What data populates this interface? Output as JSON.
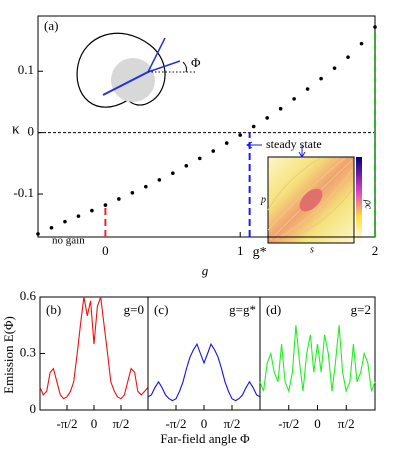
{
  "chart_data": [
    {
      "type": "scatter",
      "panel_label": "(a)",
      "x_label": "g",
      "y_label": "κ",
      "color": "#000000",
      "x": [
        -0.5,
        -0.4,
        -0.3,
        -0.2,
        -0.1,
        0,
        0.1,
        0.2,
        0.3,
        0.4,
        0.5,
        0.6,
        0.7,
        0.8,
        0.9,
        1.0,
        1.1,
        1.2,
        1.3,
        1.4,
        1.5,
        1.6,
        1.7,
        1.8,
        1.9,
        2.0
      ],
      "values": [
        -0.165,
        -0.155,
        -0.145,
        -0.136,
        -0.127,
        -0.118,
        -0.108,
        -0.098,
        -0.088,
        -0.077,
        -0.066,
        -0.054,
        -0.042,
        -0.03,
        -0.017,
        -0.004,
        0.01,
        0.024,
        0.039,
        0.055,
        0.071,
        0.088,
        0.105,
        0.123,
        0.145,
        0.172
      ],
      "xlim": [
        -0.5,
        2.0
      ],
      "ylim": [
        -0.17,
        0.19
      ],
      "xticks": [
        0,
        1,
        2
      ],
      "yticks": [
        -0.1,
        0,
        0.1
      ],
      "hline": 0,
      "markers": [
        {
          "x": 0,
          "y": -0.118,
          "color": "#e8262a"
        },
        {
          "x": 1.07,
          "y": 0,
          "color": "#1a1aff",
          "label": "g*"
        },
        {
          "x": 2.0,
          "y": 0.172,
          "color": "#22bb22"
        }
      ],
      "annotations": {
        "no_gain": "no gain",
        "steady_state": "steady state",
        "phi": "Φ",
        "inset_x": "s",
        "inset_y": "p",
        "inset_cbar": "ρc"
      }
    },
    {
      "type": "line",
      "panel_label": "(b)",
      "title": "g=0",
      "color": "#ee1111",
      "y_label": "Emission E(Φ)",
      "x": [
        -3.14,
        -2.95,
        -2.75,
        -2.55,
        -2.36,
        -2.16,
        -1.96,
        -1.77,
        -1.57,
        -1.37,
        -1.18,
        -0.98,
        -0.79,
        -0.59,
        -0.39,
        -0.2,
        0,
        0.2,
        0.39,
        0.59,
        0.79,
        0.98,
        1.18,
        1.37,
        1.57,
        1.77,
        1.96,
        2.16,
        2.36,
        2.55,
        2.75,
        2.95,
        3.14
      ],
      "values": [
        0.12,
        0.08,
        0.1,
        0.2,
        0.22,
        0.15,
        0.08,
        0.06,
        0.07,
        0.1,
        0.15,
        0.3,
        0.45,
        0.6,
        0.5,
        0.58,
        0.35,
        0.55,
        0.6,
        0.45,
        0.3,
        0.15,
        0.1,
        0.07,
        0.06,
        0.08,
        0.15,
        0.22,
        0.2,
        0.1,
        0.08,
        0.1,
        0.12
      ],
      "xlim": [
        -3.1416,
        3.1416
      ],
      "ylim": [
        0,
        0.6
      ],
      "yticks": [
        0,
        0.3,
        0.6
      ],
      "xticks": [
        {
          "value": -1.5708,
          "label": "-π/2"
        },
        0,
        {
          "value": 1.5708,
          "label": "π/2"
        }
      ]
    },
    {
      "type": "line",
      "panel_label": "(c)",
      "title": "g=g*",
      "color": "#1111ee",
      "x_label": "Far-field angle Φ",
      "x": [
        -3.14,
        -2.95,
        -2.75,
        -2.55,
        -2.36,
        -2.16,
        -1.96,
        -1.77,
        -1.57,
        -1.37,
        -1.18,
        -0.98,
        -0.79,
        -0.59,
        -0.39,
        -0.2,
        0,
        0.2,
        0.39,
        0.59,
        0.79,
        0.98,
        1.18,
        1.37,
        1.57,
        1.77,
        1.96,
        2.16,
        2.36,
        2.55,
        2.75,
        2.95,
        3.14
      ],
      "values": [
        0.07,
        0.08,
        0.12,
        0.15,
        0.12,
        0.08,
        0.06,
        0.05,
        0.06,
        0.1,
        0.15,
        0.22,
        0.28,
        0.32,
        0.35,
        0.3,
        0.25,
        0.3,
        0.35,
        0.32,
        0.28,
        0.22,
        0.15,
        0.1,
        0.06,
        0.05,
        0.06,
        0.08,
        0.12,
        0.15,
        0.12,
        0.08,
        0.07
      ],
      "xlim": [
        -3.1416,
        3.1416
      ],
      "ylim": [
        0,
        0.6
      ],
      "xticks": [
        {
          "value": -1.5708,
          "label": "-π/2"
        },
        0,
        {
          "value": 1.5708,
          "label": "π/2"
        }
      ]
    },
    {
      "type": "line",
      "panel_label": "(d)",
      "title": "g=2",
      "color": "#22ee22",
      "x": [
        -3.14,
        -2.95,
        -2.75,
        -2.55,
        -2.36,
        -2.16,
        -1.96,
        -1.77,
        -1.57,
        -1.37,
        -1.18,
        -0.98,
        -0.79,
        -0.59,
        -0.39,
        -0.2,
        0,
        0.2,
        0.39,
        0.59,
        0.79,
        0.98,
        1.18,
        1.37,
        1.57,
        1.77,
        1.96,
        2.16,
        2.36,
        2.55,
        2.75,
        2.95,
        3.14
      ],
      "values": [
        0.15,
        0.1,
        0.25,
        0.3,
        0.2,
        0.15,
        0.35,
        0.15,
        0.1,
        0.2,
        0.45,
        0.25,
        0.1,
        0.3,
        0.4,
        0.2,
        0.35,
        0.2,
        0.4,
        0.3,
        0.1,
        0.25,
        0.45,
        0.2,
        0.1,
        0.15,
        0.35,
        0.15,
        0.2,
        0.3,
        0.25,
        0.1,
        0.15
      ],
      "xlim": [
        -3.1416,
        3.1416
      ],
      "ylim": [
        0,
        0.6
      ],
      "xticks": [
        {
          "value": -1.5708,
          "label": "-π/2"
        },
        0,
        {
          "value": 1.5708,
          "label": "π/2"
        }
      ]
    }
  ]
}
